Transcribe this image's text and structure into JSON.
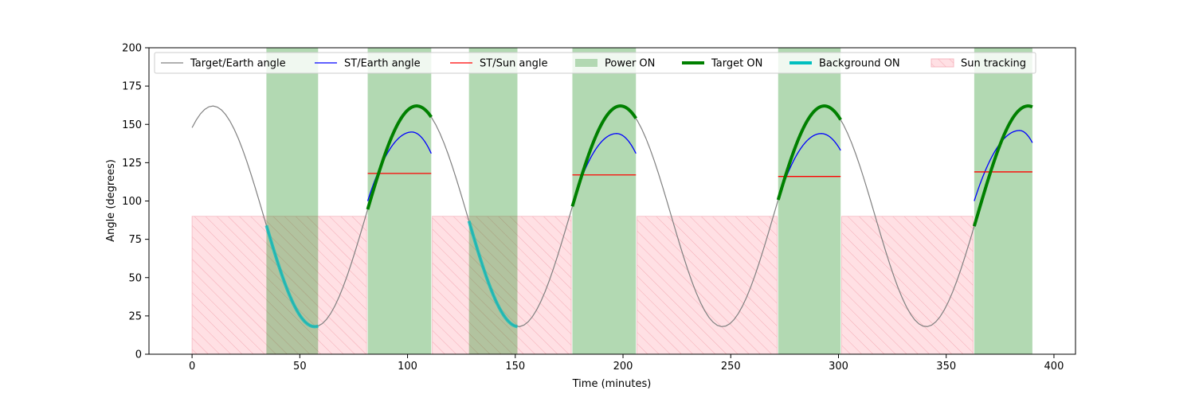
{
  "chart_data": {
    "type": "line",
    "title": "",
    "xlabel": "Time (minutes)",
    "ylabel": "Angle (degrees)",
    "xlim": [
      -20,
      410
    ],
    "ylim": [
      0,
      200
    ],
    "x_ticks": [
      0,
      50,
      100,
      150,
      200,
      250,
      300,
      350,
      400
    ],
    "y_ticks": [
      0,
      25,
      50,
      75,
      100,
      125,
      150,
      175,
      200
    ],
    "legend_placement": "top",
    "legend": [
      {
        "label": "Target/Earth angle",
        "kind": "line",
        "color": "#808080"
      },
      {
        "label": "ST/Earth angle",
        "kind": "line",
        "color": "#0000ff"
      },
      {
        "label": "ST/Sun angle",
        "kind": "line",
        "color": "#ff0000"
      },
      {
        "label": "Power ON",
        "kind": "patch",
        "color": "#b2d8b2"
      },
      {
        "label": "Target ON",
        "kind": "thickline",
        "color": "#008000"
      },
      {
        "label": "Background ON",
        "kind": "thickline",
        "color": "#00bfbf"
      },
      {
        "label": "Sun tracking",
        "kind": "hatch",
        "color": "#ffe0e4"
      }
    ],
    "target_earth_model": {
      "center": 90,
      "amplitude": 72,
      "period_minutes": 94.6,
      "x_at_peak": 9.6,
      "x_range": [
        0,
        390
      ]
    },
    "power_on_intervals": [
      [
        34.5,
        58.5
      ],
      [
        81.5,
        111
      ],
      [
        128.5,
        151
      ],
      [
        176.5,
        206
      ],
      [
        272,
        301
      ],
      [
        363,
        390
      ]
    ],
    "sun_tracking_intervals": [
      [
        0,
        81
      ],
      [
        111.5,
        176
      ],
      [
        206.5,
        271.5
      ],
      [
        301.5,
        362.5
      ]
    ],
    "sun_tracking_level": 90,
    "target_on_intervals": [
      [
        81.5,
        111
      ],
      [
        176.5,
        206
      ],
      [
        272,
        301
      ],
      [
        363,
        390
      ]
    ],
    "background_on_intervals": [
      [
        34.5,
        58.5
      ],
      [
        128.5,
        151
      ]
    ],
    "st_earth_series": [
      {
        "x0": 81.5,
        "x1": 111,
        "y_start": 100,
        "peak": 145,
        "x_peak": 102,
        "y_end": 131
      },
      {
        "x0": 176.5,
        "x1": 206,
        "y_start": 98,
        "peak": 144,
        "x_peak": 197,
        "y_end": 131
      },
      {
        "x0": 272,
        "x1": 301,
        "y_start": 101,
        "peak": 144,
        "x_peak": 292,
        "y_end": 133
      },
      {
        "x0": 363,
        "x1": 390,
        "y_start": 100,
        "peak": 146,
        "x_peak": 384,
        "y_end": 138
      }
    ],
    "st_sun_series": [
      {
        "x0": 81.5,
        "x1": 111,
        "y": 118
      },
      {
        "x0": 176.5,
        "x1": 206,
        "y": 117
      },
      {
        "x0": 272,
        "x1": 301,
        "y": 116
      },
      {
        "x0": 363,
        "x1": 390,
        "y": 119
      }
    ],
    "colors": {
      "target_earth": "#808080",
      "st_earth": "#0000ff",
      "st_sun": "#ff0000",
      "power_on": "#008000",
      "target_on": "#008000",
      "background_on": "#00bfbf",
      "sun_tracking": "#ff9aa8"
    }
  }
}
